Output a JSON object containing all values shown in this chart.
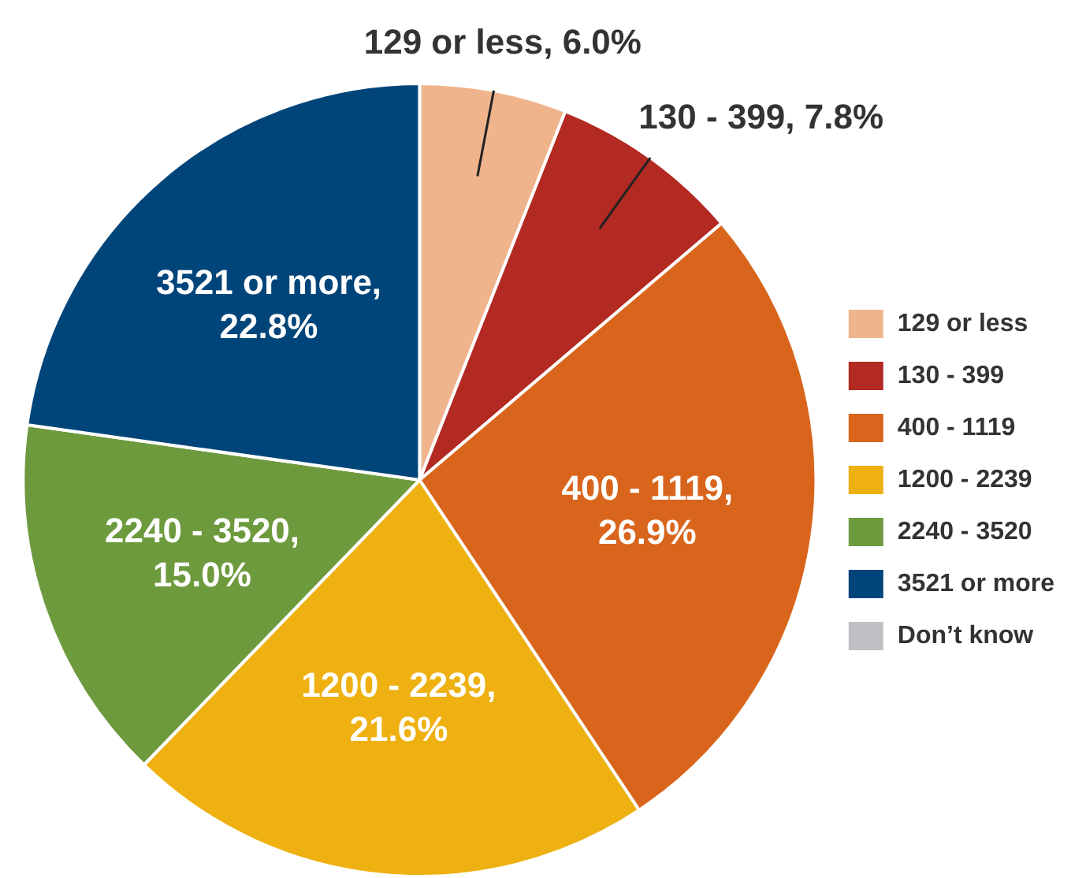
{
  "chart_data": {
    "type": "pie",
    "categories": [
      "129 or less",
      "130 - 399",
      "400 - 1119",
      "1200 - 2239",
      "2240 - 3520",
      "3521 or more",
      "Don’t know"
    ],
    "values": [
      6.0,
      7.8,
      26.9,
      21.6,
      15.0,
      22.8,
      0
    ],
    "value_labels": [
      "129 or less, 6.0%",
      "130 - 399, 7.8%",
      "400 - 1119, 26.9%",
      "1200 - 2239, 21.6%",
      "2240 - 3520, 15.0%",
      "3521 or more, 22.8%",
      null
    ],
    "colors": [
      "#f0b48c",
      "#b22a22",
      "#d9651c",
      "#eeb111",
      "#6e9a3e",
      "#00457a",
      "#bfbfc4"
    ],
    "legend": "right"
  }
}
